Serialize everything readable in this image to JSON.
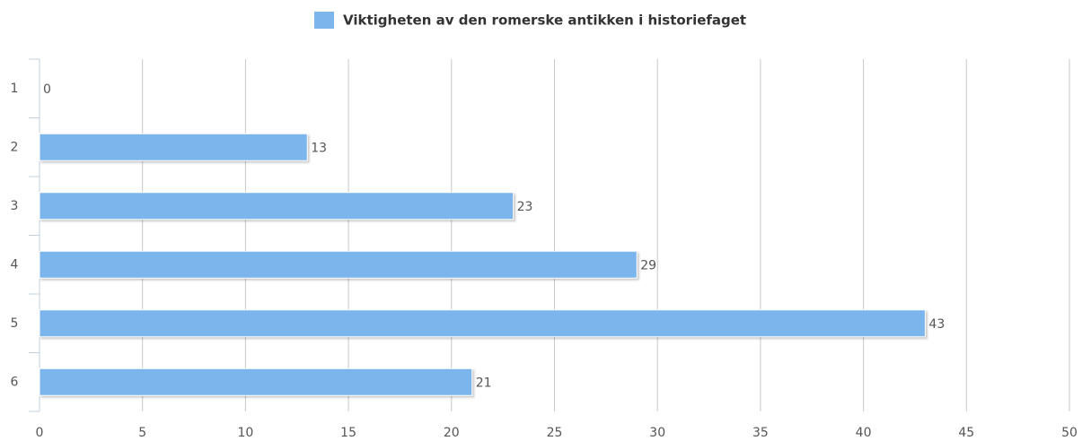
{
  "chart_data": {
    "type": "bar",
    "orientation": "horizontal",
    "categories": [
      "1",
      "2",
      "3",
      "4",
      "5",
      "6"
    ],
    "series": [
      {
        "name": "Viktigheten av den romerske antikken i historiefaget",
        "color": "#7cb5ec",
        "values": [
          0,
          13,
          23,
          29,
          43,
          21
        ]
      }
    ],
    "xlim": [
      0,
      50
    ],
    "xticks": [
      0,
      5,
      10,
      15,
      20,
      25,
      30,
      35,
      40,
      45,
      50
    ],
    "grid": true,
    "legend": "top"
  }
}
